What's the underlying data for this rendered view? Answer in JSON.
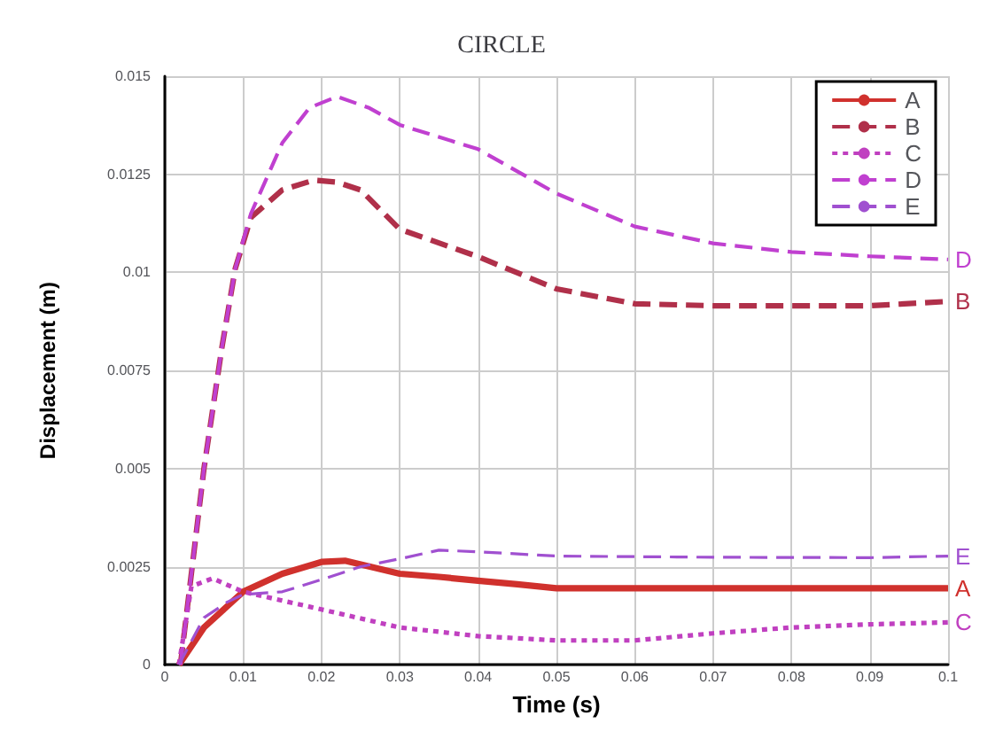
{
  "chart_data": {
    "type": "line",
    "title": "CIRCLE",
    "xlabel": "Time (s)",
    "ylabel": "Displacement (m)",
    "xlim": [
      0,
      0.1
    ],
    "xticks": [
      0,
      0.01,
      0.02,
      0.03,
      0.04,
      0.05,
      0.06,
      0.07,
      0.08,
      0.09,
      0.1
    ],
    "ylim": [
      0,
      0.015
    ],
    "yticks": [
      0,
      0.0025,
      0.005,
      0.0075,
      0.01,
      0.0125,
      0.015
    ],
    "grid": true,
    "legend": "top right",
    "marker": "none",
    "series": [
      {
        "name": "A",
        "color": "#d0312d",
        "line_style": "solid",
        "x": [
          0.0018,
          0.005,
          0.01,
          0.015,
          0.02,
          0.023,
          0.03,
          0.035,
          0.04,
          0.045,
          0.05,
          0.07,
          0.1
        ],
        "values": [
          0,
          0.00095,
          0.00186,
          0.00232,
          0.00262,
          0.00265,
          0.00232,
          0.00224,
          0.00214,
          0.00205,
          0.00195,
          0.00195,
          0.00195
        ]
      },
      {
        "name": "B",
        "color": "#b0304a",
        "line_style": "dashed",
        "x": [
          0.002,
          0.0035,
          0.005,
          0.0073,
          0.009,
          0.011,
          0.015,
          0.019,
          0.022,
          0.025,
          0.03,
          0.04,
          0.05,
          0.06,
          0.07,
          0.09,
          0.1
        ],
        "values": [
          0,
          0.0025,
          0.005,
          0.0081,
          0.0101,
          0.0114,
          0.0121,
          0.01235,
          0.0123,
          0.0121,
          0.0111,
          0.0104,
          0.00958,
          0.0092,
          0.00915,
          0.00915,
          0.00926
        ]
      },
      {
        "name": "C",
        "color": "#c040c0",
        "line_style": "dotted",
        "x": [
          0.0018,
          0.0034,
          0.0061,
          0.01,
          0.02,
          0.03,
          0.04,
          0.05,
          0.06,
          0.07,
          0.08,
          0.09,
          0.1
        ],
        "values": [
          0,
          0.002,
          0.0022,
          0.00186,
          0.00141,
          0.00095,
          0.00073,
          0.00062,
          0.00062,
          0.0008,
          0.00095,
          0.00103,
          0.00108
        ]
      },
      {
        "name": "D",
        "color": "#c040d0",
        "line_style": "dashed",
        "x": [
          0.002,
          0.0035,
          0.005,
          0.0073,
          0.009,
          0.011,
          0.015,
          0.0185,
          0.022,
          0.026,
          0.03,
          0.04,
          0.05,
          0.06,
          0.07,
          0.08,
          0.09,
          0.1
        ],
        "values": [
          0,
          0.0025,
          0.005,
          0.0081,
          0.0101,
          0.0115,
          0.0133,
          0.0142,
          0.01448,
          0.0142,
          0.01376,
          0.01314,
          0.01201,
          0.01117,
          0.01074,
          0.01052,
          0.01041,
          0.01033
        ]
      },
      {
        "name": "E",
        "color": "#a050d0",
        "line_style": "dashed",
        "x": [
          0.0018,
          0.005,
          0.008,
          0.01,
          0.015,
          0.02,
          0.025,
          0.03,
          0.035,
          0.04,
          0.05,
          0.07,
          0.09,
          0.1
        ],
        "values": [
          0,
          0.0012,
          0.0016,
          0.00179,
          0.00186,
          0.00217,
          0.0025,
          0.0027,
          0.00292,
          0.00288,
          0.00277,
          0.00274,
          0.00273,
          0.00277
        ]
      }
    ]
  }
}
